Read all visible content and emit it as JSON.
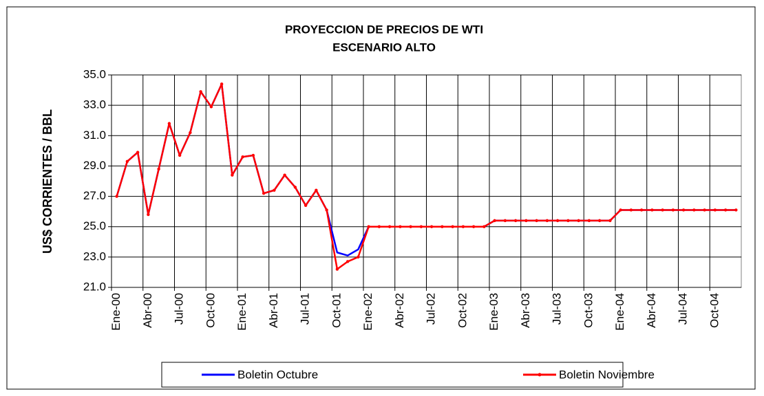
{
  "chart_data": {
    "type": "line",
    "title": "PROYECCION DE PRECIOS DE WTI",
    "subtitle": "ESCENARIO ALTO",
    "y_label": "US$ CORRIENTES / BBL",
    "categories": [
      "Ene-00",
      null,
      null,
      "Abr-00",
      null,
      null,
      "Jul-00",
      null,
      null,
      "Oct-00",
      null,
      null,
      "Ene-01",
      null,
      null,
      "Abr-01",
      null,
      null,
      "Jul-01",
      null,
      null,
      "Oct-01",
      null,
      null,
      "Ene-02",
      null,
      null,
      "Abr-02",
      null,
      null,
      "Jul-02",
      null,
      null,
      "Oct-02",
      null,
      null,
      "Ene-03",
      null,
      null,
      "Abr-03",
      null,
      null,
      "Jul-03",
      null,
      null,
      "Oct-03",
      null,
      null,
      "Ene-04",
      null,
      null,
      "Abr-04",
      null,
      null,
      "Jul-04",
      null,
      null,
      "Oct-04",
      null,
      null
    ],
    "series": [
      {
        "name": "Boletin Octubre",
        "color": "#0000ff",
        "markers": false,
        "values": [
          27.0,
          29.3,
          29.9,
          25.8,
          28.8,
          31.8,
          29.7,
          31.2,
          33.9,
          32.9,
          34.4,
          28.4,
          29.6,
          29.7,
          27.2,
          27.4,
          28.4,
          27.6,
          26.4,
          27.4,
          26.1,
          23.3,
          23.1,
          23.5,
          25.0,
          25.0,
          25.0,
          25.0,
          25.0,
          25.0,
          25.0,
          25.0,
          25.0,
          25.0,
          25.0,
          25.0,
          25.4,
          25.4,
          25.4,
          25.4,
          25.4,
          25.4,
          25.4,
          25.4,
          25.4,
          25.4,
          25.4,
          25.4,
          26.1,
          26.1,
          26.1,
          26.1,
          26.1,
          26.1,
          26.1,
          26.1,
          26.1,
          26.1,
          26.1,
          26.1
        ]
      },
      {
        "name": "Boletin Noviembre",
        "color": "#ff0000",
        "markers": true,
        "values": [
          27.0,
          29.3,
          29.9,
          25.8,
          28.8,
          31.8,
          29.7,
          31.2,
          33.9,
          32.9,
          34.4,
          28.4,
          29.6,
          29.7,
          27.2,
          27.4,
          28.4,
          27.6,
          26.4,
          27.4,
          26.1,
          22.2,
          22.7,
          23.0,
          25.0,
          25.0,
          25.0,
          25.0,
          25.0,
          25.0,
          25.0,
          25.0,
          25.0,
          25.0,
          25.0,
          25.0,
          25.4,
          25.4,
          25.4,
          25.4,
          25.4,
          25.4,
          25.4,
          25.4,
          25.4,
          25.4,
          25.4,
          25.4,
          26.1,
          26.1,
          26.1,
          26.1,
          26.1,
          26.1,
          26.1,
          26.1,
          26.1,
          26.1,
          26.1,
          26.1
        ]
      }
    ],
    "ylim": [
      21,
      35
    ],
    "yticks": [
      {
        "value": 21,
        "label": "21.0"
      },
      {
        "value": 23,
        "label": "23.0"
      },
      {
        "value": 25,
        "label": "25.0"
      },
      {
        "value": 27,
        "label": "27.0"
      },
      {
        "value": 29,
        "label": "29.0"
      },
      {
        "value": 31,
        "label": "31.0"
      },
      {
        "value": 33,
        "label": "33.0"
      },
      {
        "value": 35,
        "label": "35.0"
      }
    ],
    "grid": true,
    "legend": "bottom"
  }
}
